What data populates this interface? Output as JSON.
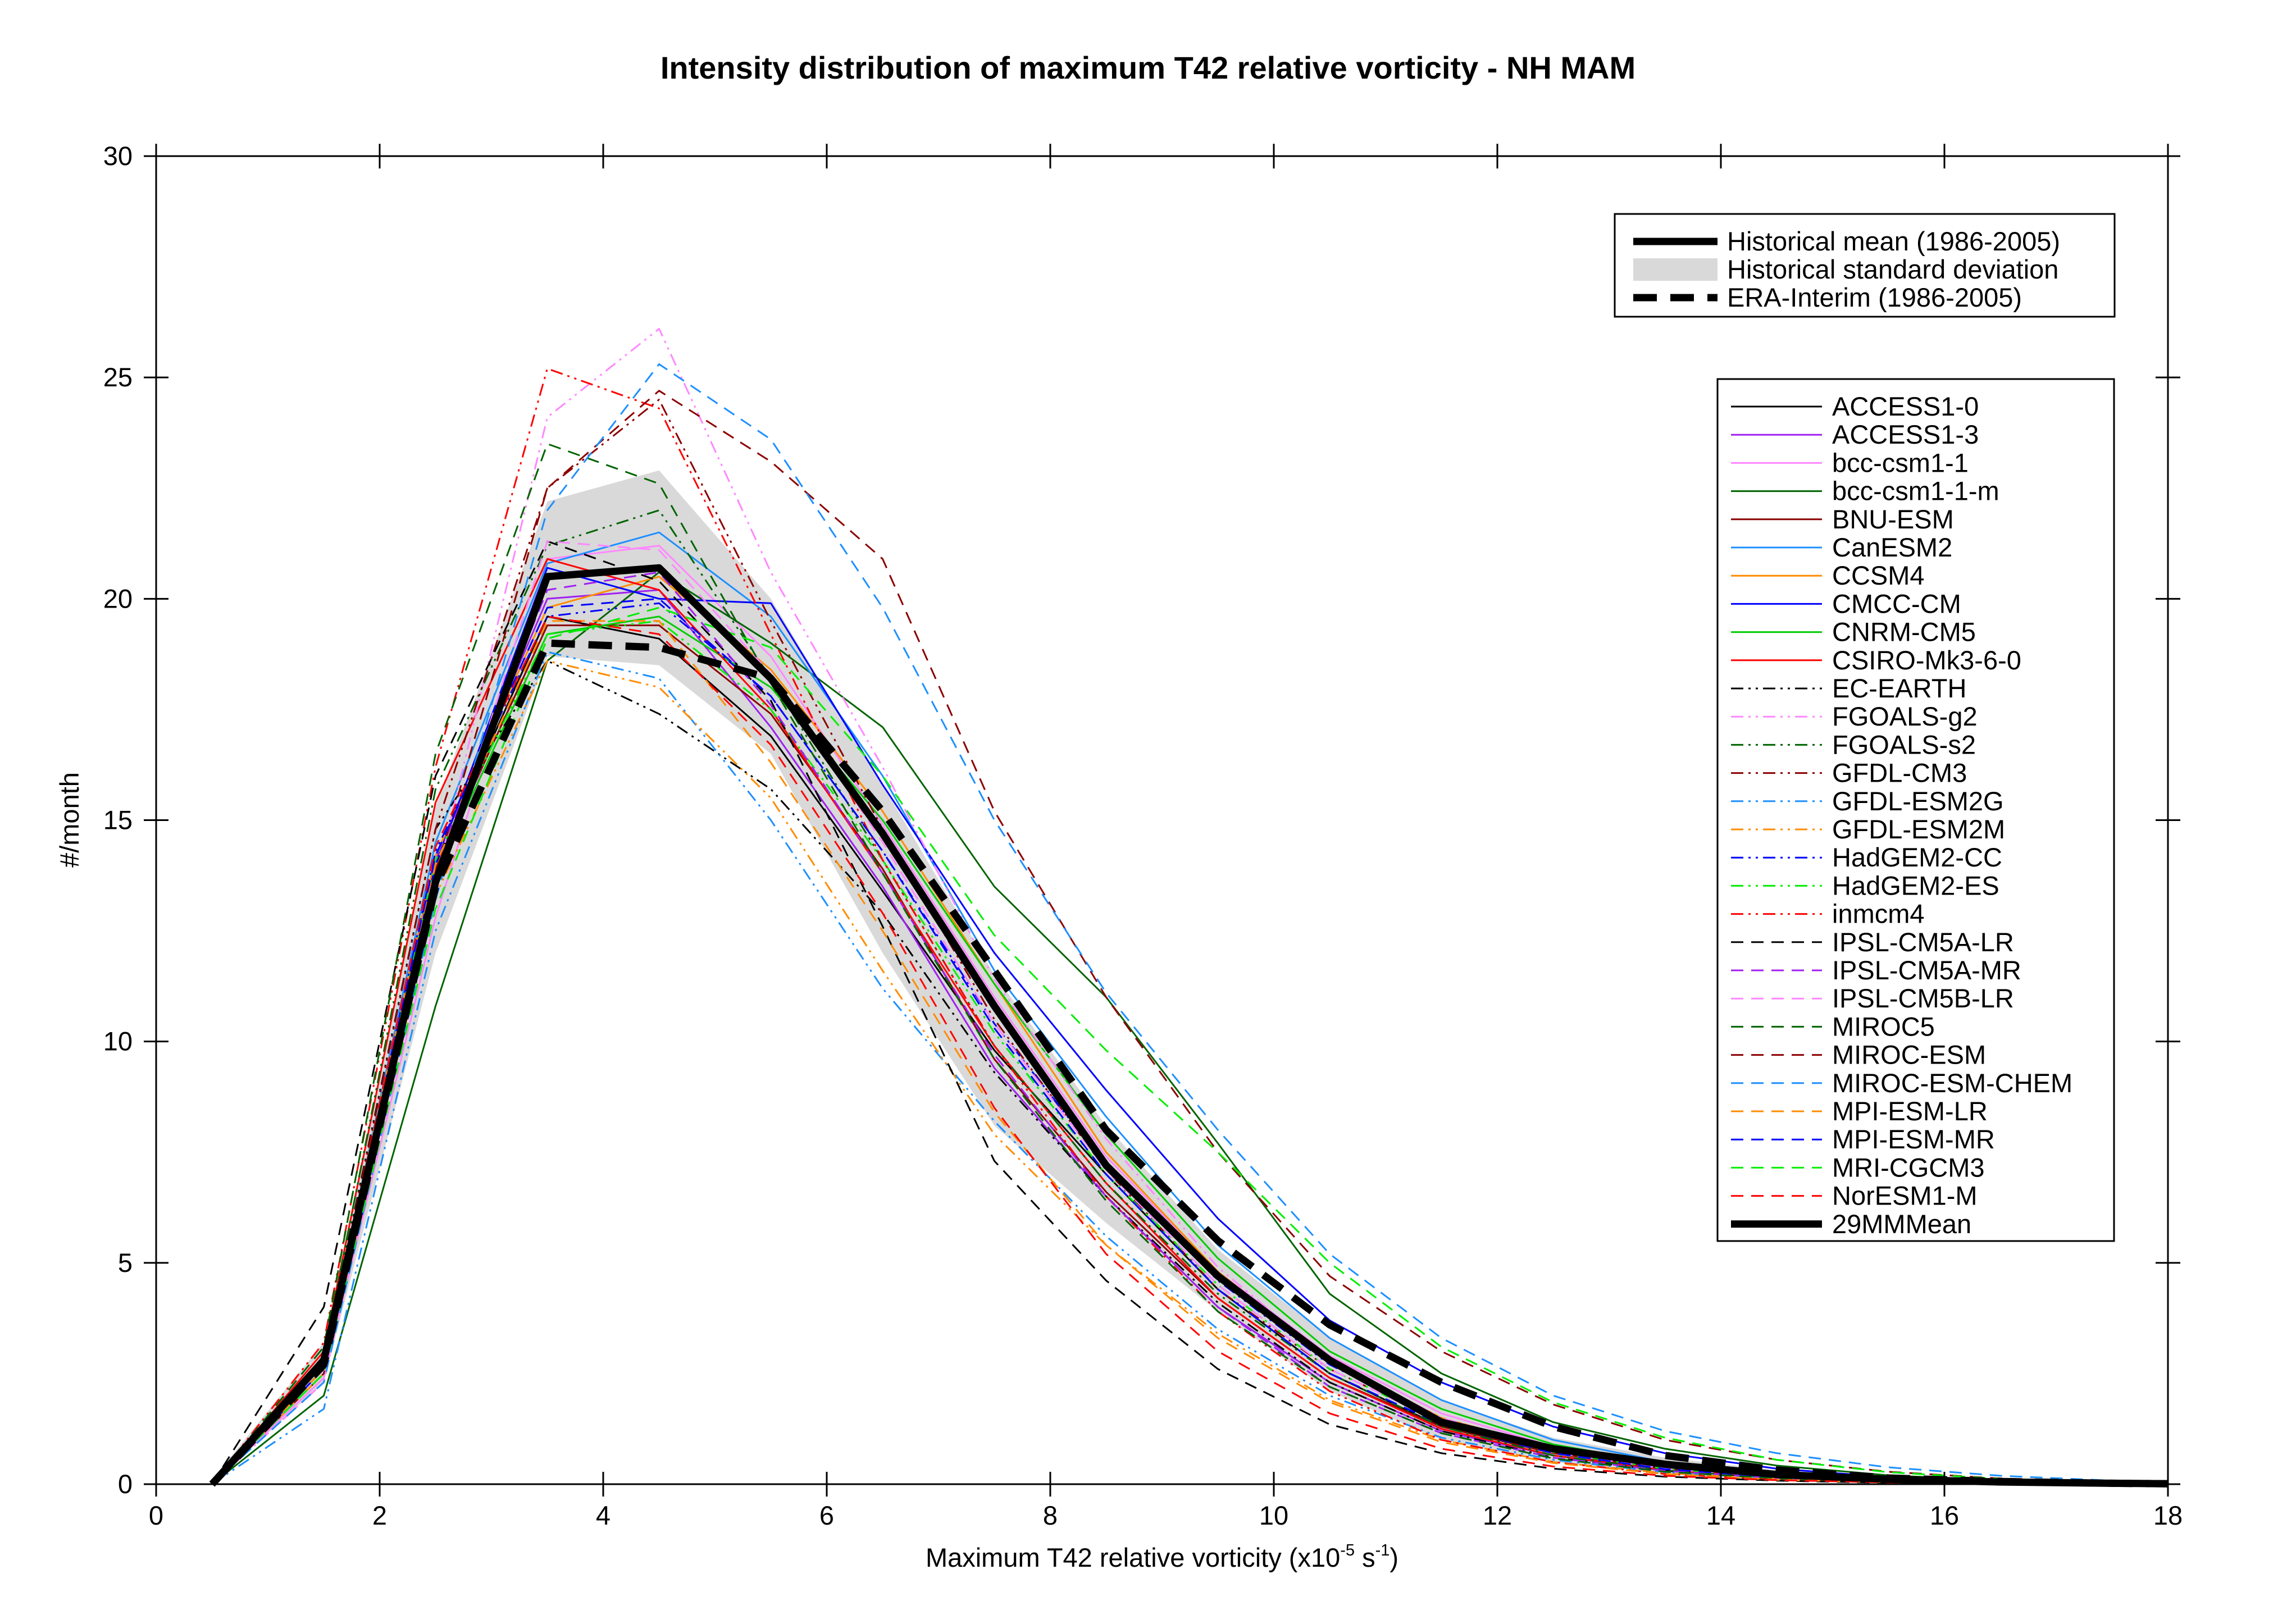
{
  "chart_data": {
    "type": "line",
    "title": "Intensity distribution of maximum T42 relative vorticity - NH MAM",
    "xlabel": "Maximum T42 relative vorticity (x10",
    "xlabel_exp": "-5",
    "xlabel_unit": "s",
    "xlabel_unit_exp": "-1",
    "xlabel_close": ")",
    "ylabel": "#/month",
    "xlim": [
      0,
      18
    ],
    "ylim": [
      0,
      30
    ],
    "xticks": [
      "0",
      "2",
      "4",
      "6",
      "8",
      "10",
      "12",
      "14",
      "16",
      "18"
    ],
    "yticks": [
      "0",
      "5",
      "10",
      "15",
      "20",
      "25",
      "30"
    ],
    "x": [
      0.5,
      1.5,
      2.5,
      3.5,
      4.5,
      5.5,
      6.5,
      7.5,
      8.5,
      9.5,
      10.5,
      11.5,
      12.5,
      13.5,
      14.5,
      15.5,
      16.5,
      17.5,
      18
    ],
    "historical_std": {
      "label": "Historical standard deviation",
      "color": "#d9d9d9",
      "upper": [
        0.1,
        3.2,
        15.3,
        22.2,
        22.9,
        20.0,
        15.8,
        11.5,
        8.1,
        5.3,
        3.3,
        1.9,
        1.05,
        0.6,
        0.32,
        0.16,
        0.07,
        0.03,
        0.02
      ],
      "lower": [
        0.0,
        2.3,
        12.0,
        18.7,
        18.5,
        16.5,
        12.0,
        8.1,
        5.9,
        3.9,
        2.1,
        1.0,
        0.5,
        0.25,
        0.12,
        0.05,
        0.02,
        0.0,
        0.0
      ]
    },
    "historical_mean": {
      "label": "Historical mean (1986-2005)",
      "values": [
        0.0,
        2.8,
        13.6,
        20.5,
        20.7,
        18.2,
        14.7,
        10.8,
        7.2,
        4.7,
        2.8,
        1.4,
        0.8,
        0.45,
        0.22,
        0.11,
        0.05,
        0.02,
        0.01
      ]
    },
    "era_interim": {
      "label": "ERA-Interim (1986-2005)",
      "values": [
        0.0,
        2.7,
        13.5,
        19.0,
        18.9,
        18.2,
        15.2,
        11.6,
        8.0,
        5.5,
        3.6,
        2.3,
        1.3,
        0.65,
        0.32,
        0.14,
        0.06,
        0.02,
        0.01
      ]
    },
    "series": [
      {
        "name": "ACCESS1-0",
        "color": "#000000",
        "dash": "solid",
        "values": [
          0.0,
          2.6,
          14.0,
          19.6,
          19.1,
          16.9,
          13.4,
          9.8,
          7.0,
          4.4,
          2.5,
          1.3,
          0.7,
          0.35,
          0.16,
          0.07,
          0.03,
          0.01,
          0.0
        ]
      },
      {
        "name": "ACCESS1-3",
        "color": "#a020f0",
        "dash": "solid",
        "values": [
          0.0,
          2.7,
          14.1,
          20.0,
          20.2,
          17.1,
          13.5,
          9.4,
          6.5,
          4.0,
          2.3,
          1.2,
          0.65,
          0.3,
          0.14,
          0.06,
          0.02,
          0.01,
          0.0
        ]
      },
      {
        "name": "bcc-csm1-1",
        "color": "#ff88ff",
        "dash": "solid",
        "values": [
          0.0,
          2.4,
          12.8,
          20.9,
          21.2,
          18.7,
          14.9,
          11.0,
          7.4,
          4.8,
          2.9,
          1.6,
          0.85,
          0.45,
          0.21,
          0.1,
          0.04,
          0.02,
          0.0
        ]
      },
      {
        "name": "bcc-csm1-1-m",
        "color": "#006400",
        "dash": "solid",
        "values": [
          0.0,
          2.0,
          10.8,
          18.6,
          20.6,
          19.0,
          17.1,
          13.5,
          11.0,
          7.7,
          4.3,
          2.5,
          1.4,
          0.8,
          0.42,
          0.2,
          0.08,
          0.03,
          0.01
        ]
      },
      {
        "name": "BNU-ESM",
        "color": "#8b0000",
        "dash": "solid",
        "values": [
          0.0,
          2.5,
          13.9,
          19.4,
          19.4,
          17.4,
          13.9,
          9.6,
          6.6,
          4.2,
          2.4,
          1.3,
          0.7,
          0.35,
          0.17,
          0.07,
          0.03,
          0.01,
          0.0
        ]
      },
      {
        "name": "CanESM2",
        "color": "#1e90ff",
        "dash": "solid",
        "values": [
          0.0,
          2.8,
          14.5,
          20.8,
          21.5,
          19.6,
          16.0,
          11.6,
          8.3,
          5.4,
          3.3,
          1.9,
          1.0,
          0.5,
          0.25,
          0.11,
          0.05,
          0.02,
          0.01
        ]
      },
      {
        "name": "CCSM4",
        "color": "#ff8c00",
        "dash": "solid",
        "values": [
          0.0,
          2.9,
          14.2,
          19.8,
          20.5,
          18.4,
          15.2,
          11.3,
          7.5,
          4.8,
          2.8,
          1.5,
          0.8,
          0.4,
          0.19,
          0.09,
          0.04,
          0.01,
          0.0
        ]
      },
      {
        "name": "CMCC-CM",
        "color": "#0000ff",
        "dash": "solid",
        "values": [
          0.0,
          2.6,
          14.0,
          20.7,
          20.0,
          19.9,
          15.8,
          12.0,
          8.9,
          6.0,
          3.7,
          2.3,
          1.3,
          0.7,
          0.35,
          0.16,
          0.07,
          0.03,
          0.01
        ]
      },
      {
        "name": "CNRM-CM5",
        "color": "#00cc00",
        "dash": "solid",
        "values": [
          0.0,
          2.7,
          13.8,
          19.2,
          19.6,
          18.0,
          15.0,
          11.3,
          7.9,
          5.1,
          3.0,
          1.7,
          0.9,
          0.45,
          0.22,
          0.1,
          0.04,
          0.02,
          0.0
        ]
      },
      {
        "name": "CSIRO-Mk3-6-0",
        "color": "#ff0000",
        "dash": "solid",
        "values": [
          0.0,
          3.0,
          15.4,
          20.9,
          20.2,
          17.5,
          13.8,
          9.9,
          6.8,
          4.2,
          2.4,
          1.25,
          0.65,
          0.32,
          0.15,
          0.07,
          0.03,
          0.01,
          0.0
        ]
      },
      {
        "name": "EC-EARTH",
        "color": "#000000",
        "dash": "dashdotdot",
        "values": [
          0.0,
          2.9,
          14.8,
          18.6,
          17.4,
          15.7,
          12.9,
          9.3,
          6.5,
          4.1,
          2.3,
          1.2,
          0.6,
          0.3,
          0.14,
          0.06,
          0.02,
          0.01,
          0.0
        ]
      },
      {
        "name": "FGOALS-g2",
        "color": "#ff88ff",
        "dash": "dashdotdot",
        "values": [
          0.0,
          2.3,
          13.6,
          24.1,
          26.1,
          20.6,
          16.2,
          11.4,
          7.8,
          4.9,
          2.8,
          1.5,
          0.8,
          0.4,
          0.19,
          0.08,
          0.03,
          0.01,
          0.0
        ]
      },
      {
        "name": "FGOALS-s2",
        "color": "#006400",
        "dash": "dashdotdot",
        "values": [
          0.0,
          2.9,
          15.7,
          21.2,
          22.0,
          18.2,
          14.1,
          9.9,
          6.8,
          4.3,
          2.5,
          1.3,
          0.65,
          0.32,
          0.15,
          0.07,
          0.03,
          0.01,
          0.0
        ]
      },
      {
        "name": "GFDL-CM3",
        "color": "#8b0000",
        "dash": "dashdotdot",
        "values": [
          0.0,
          2.8,
          14.8,
          22.5,
          24.5,
          19.5,
          14.8,
          10.5,
          7.1,
          4.4,
          2.6,
          1.4,
          0.7,
          0.35,
          0.17,
          0.08,
          0.03,
          0.01,
          0.0
        ]
      },
      {
        "name": "GFDL-ESM2G",
        "color": "#1e90ff",
        "dash": "dashdotdot",
        "values": [
          0.0,
          1.7,
          12.5,
          18.8,
          18.2,
          15.0,
          11.2,
          8.2,
          5.6,
          3.5,
          2.0,
          1.05,
          0.55,
          0.27,
          0.12,
          0.05,
          0.02,
          0.01,
          0.0
        ]
      },
      {
        "name": "GFDL-ESM2M",
        "color": "#ff8c00",
        "dash": "dashdotdot",
        "values": [
          0.0,
          2.5,
          13.3,
          18.6,
          18.0,
          15.5,
          11.6,
          7.9,
          5.4,
          3.4,
          1.9,
          1.0,
          0.5,
          0.25,
          0.12,
          0.05,
          0.02,
          0.01,
          0.0
        ]
      },
      {
        "name": "HadGEM2-CC",
        "color": "#0000ff",
        "dash": "dashdotdot",
        "values": [
          0.0,
          2.7,
          14.3,
          19.6,
          19.9,
          17.8,
          14.3,
          10.4,
          7.2,
          4.6,
          2.7,
          1.45,
          0.75,
          0.37,
          0.18,
          0.08,
          0.03,
          0.01,
          0.0
        ]
      },
      {
        "name": "HadGEM2-ES",
        "color": "#00ee00",
        "dash": "dashdotdot",
        "values": [
          0.0,
          2.7,
          14.1,
          19.2,
          19.5,
          17.5,
          14.1,
          10.2,
          7.0,
          4.5,
          2.6,
          1.4,
          0.72,
          0.35,
          0.17,
          0.08,
          0.03,
          0.01,
          0.0
        ]
      },
      {
        "name": "inmcm4",
        "color": "#ff0000",
        "dash": "dashdotdot",
        "values": [
          0.0,
          3.2,
          16.2,
          25.2,
          24.3,
          19.2,
          14.1,
          9.9,
          6.5,
          3.9,
          2.1,
          1.0,
          0.5,
          0.23,
          0.1,
          0.04,
          0.02,
          0.01,
          0.0
        ]
      },
      {
        "name": "IPSL-CM5A-LR",
        "color": "#000000",
        "dash": "dash",
        "values": [
          0.0,
          4.0,
          16.0,
          21.3,
          20.4,
          17.7,
          12.6,
          7.3,
          4.6,
          2.6,
          1.35,
          0.7,
          0.35,
          0.17,
          0.08,
          0.03,
          0.01,
          0.0,
          0.0
        ]
      },
      {
        "name": "IPSL-CM5A-MR",
        "color": "#a020f0",
        "dash": "dash",
        "values": [
          0.0,
          2.6,
          14.0,
          20.2,
          20.6,
          17.6,
          13.8,
          9.7,
          6.5,
          4.0,
          2.2,
          1.15,
          0.6,
          0.3,
          0.14,
          0.06,
          0.02,
          0.01,
          0.0
        ]
      },
      {
        "name": "IPSL-CM5B-LR",
        "color": "#ff88ff",
        "dash": "dash",
        "values": [
          0.0,
          2.4,
          13.3,
          21.3,
          21.1,
          18.3,
          14.5,
          10.4,
          7.1,
          4.5,
          2.6,
          1.4,
          0.72,
          0.35,
          0.17,
          0.08,
          0.03,
          0.01,
          0.0
        ]
      },
      {
        "name": "MIROC5",
        "color": "#006400",
        "dash": "dash",
        "values": [
          0.0,
          3.1,
          16.5,
          23.5,
          22.6,
          18.1,
          13.8,
          9.6,
          6.4,
          3.9,
          2.2,
          1.15,
          0.58,
          0.28,
          0.13,
          0.06,
          0.02,
          0.01,
          0.0
        ]
      },
      {
        "name": "MIROC-ESM",
        "color": "#8b0000",
        "dash": "dash",
        "values": [
          0.0,
          2.6,
          13.8,
          22.5,
          24.7,
          23.1,
          20.9,
          15.2,
          11.0,
          7.5,
          4.7,
          3.0,
          1.8,
          1.0,
          0.55,
          0.28,
          0.13,
          0.05,
          0.02
        ]
      },
      {
        "name": "MIROC-ESM-CHEM",
        "color": "#1e90ff",
        "dash": "dash",
        "values": [
          0.0,
          2.3,
          13.2,
          22.0,
          25.3,
          23.6,
          19.8,
          15.0,
          11.1,
          8.0,
          5.2,
          3.3,
          2.0,
          1.2,
          0.7,
          0.38,
          0.19,
          0.08,
          0.03
        ]
      },
      {
        "name": "MPI-ESM-LR",
        "color": "#ff8c00",
        "dash": "dash",
        "values": [
          0.0,
          2.6,
          14.0,
          19.5,
          19.5,
          16.3,
          12.5,
          8.4,
          5.4,
          3.3,
          1.85,
          0.95,
          0.48,
          0.23,
          0.1,
          0.04,
          0.02,
          0.01,
          0.0
        ]
      },
      {
        "name": "MPI-ESM-MR",
        "color": "#0000ff",
        "dash": "dash",
        "values": [
          0.0,
          2.7,
          14.2,
          19.8,
          20.0,
          17.8,
          14.3,
          10.3,
          7.0,
          4.4,
          2.5,
          1.35,
          0.7,
          0.34,
          0.16,
          0.07,
          0.03,
          0.01,
          0.0
        ]
      },
      {
        "name": "MRI-CGCM3",
        "color": "#00ee00",
        "dash": "dash",
        "values": [
          0.0,
          2.5,
          13.0,
          19.1,
          19.8,
          18.9,
          16.0,
          12.4,
          9.8,
          7.5,
          5.0,
          3.1,
          1.85,
          1.05,
          0.55,
          0.27,
          0.12,
          0.05,
          0.02
        ]
      },
      {
        "name": "NorESM1-M",
        "color": "#ff0000",
        "dash": "dash",
        "values": [
          0.0,
          2.8,
          14.4,
          19.6,
          19.2,
          16.7,
          12.9,
          8.5,
          5.2,
          3.0,
          1.6,
          0.8,
          0.4,
          0.19,
          0.09,
          0.04,
          0.01,
          0.0,
          0.0
        ]
      }
    ],
    "mm_mean": {
      "label": "29MMMean",
      "values": [
        0.0,
        2.7,
        14.1,
        20.5,
        20.6,
        18.3,
        14.6,
        10.6,
        7.3,
        4.7,
        2.75,
        1.5,
        0.8,
        0.42,
        0.2,
        0.09,
        0.04,
        0.02,
        0.01
      ]
    },
    "legend_top": [
      "Historical mean (1986-2005)",
      "Historical standard deviation",
      "ERA-Interim (1986-2005)"
    ],
    "legend_top_position": "top-right",
    "legend_models_position": "right",
    "grid": false
  }
}
